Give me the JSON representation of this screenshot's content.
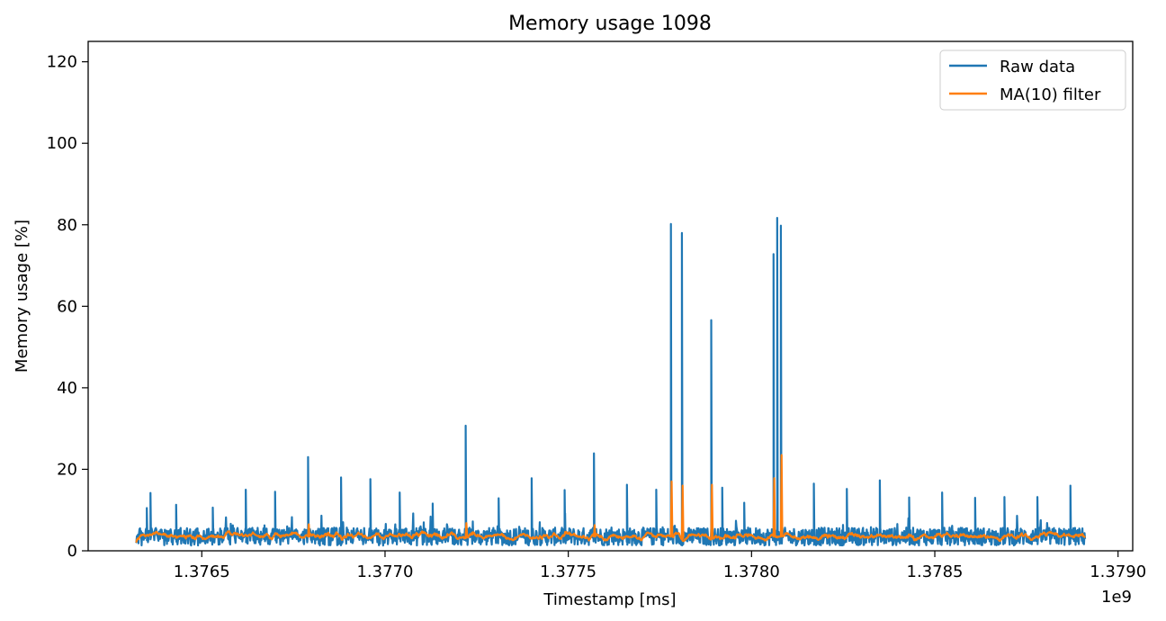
{
  "chart_data": {
    "type": "line",
    "title": "Memory usage 1098",
    "xlabel": "Timestamp [ms]",
    "ylabel": "Memory usage [%]",
    "x_offset_label": "1e9",
    "xlim": [
      1.37619,
      1.37904
    ],
    "ylim": [
      0,
      125
    ],
    "x_ticks": [
      1.3765,
      1.377,
      1.3775,
      1.378,
      1.3785,
      1.379
    ],
    "x_tick_labels": [
      "1.3765",
      "1.3770",
      "1.3775",
      "1.3780",
      "1.3785",
      "1.3790"
    ],
    "y_ticks": [
      0,
      20,
      40,
      60,
      80,
      100,
      120
    ],
    "y_tick_labels": [
      "0",
      "20",
      "40",
      "60",
      "80",
      "100",
      "120"
    ],
    "grid": false,
    "legend_position": "top-right",
    "x_range": [
      1.37632,
      1.37891
    ],
    "baseline_band": {
      "min": 1.5,
      "max": 5.5,
      "center": 3.5
    },
    "series": [
      {
        "name": "Raw data",
        "color": "#1f77b4",
        "spikes": [
          {
            "x": 1.37635,
            "y": 10.5
          },
          {
            "x": 1.37636,
            "y": 14.2
          },
          {
            "x": 1.37643,
            "y": 11.3
          },
          {
            "x": 1.37653,
            "y": 10.6
          },
          {
            "x": 1.37662,
            "y": 15.0
          },
          {
            "x": 1.3767,
            "y": 14.5
          },
          {
            "x": 1.37679,
            "y": 23.0
          },
          {
            "x": 1.37688,
            "y": 18.0
          },
          {
            "x": 1.37696,
            "y": 17.6
          },
          {
            "x": 1.37704,
            "y": 14.3
          },
          {
            "x": 1.37713,
            "y": 11.6
          },
          {
            "x": 1.37722,
            "y": 30.7
          },
          {
            "x": 1.37731,
            "y": 12.9
          },
          {
            "x": 1.3774,
            "y": 17.8
          },
          {
            "x": 1.37749,
            "y": 14.9
          },
          {
            "x": 1.37757,
            "y": 23.9
          },
          {
            "x": 1.37766,
            "y": 16.2
          },
          {
            "x": 1.37774,
            "y": 15.0
          },
          {
            "x": 1.37778,
            "y": 80.2
          },
          {
            "x": 1.37781,
            "y": 78.0
          },
          {
            "x": 1.37789,
            "y": 56.6
          },
          {
            "x": 1.37792,
            "y": 15.5
          },
          {
            "x": 1.37798,
            "y": 11.8
          },
          {
            "x": 1.37806,
            "y": 72.8
          },
          {
            "x": 1.37807,
            "y": 81.7
          },
          {
            "x": 1.37808,
            "y": 79.8
          },
          {
            "x": 1.37817,
            "y": 16.5
          },
          {
            "x": 1.37826,
            "y": 15.2
          },
          {
            "x": 1.37835,
            "y": 17.3
          },
          {
            "x": 1.37843,
            "y": 13.1
          },
          {
            "x": 1.37852,
            "y": 14.3
          },
          {
            "x": 1.37861,
            "y": 13.0
          },
          {
            "x": 1.37869,
            "y": 13.2
          },
          {
            "x": 1.37878,
            "y": 13.2
          },
          {
            "x": 1.37887,
            "y": 16.0
          }
        ]
      },
      {
        "name": "MA(10) filter",
        "color": "#ff7f0e",
        "spikes": [
          {
            "x": 1.37679,
            "y": 6.5
          },
          {
            "x": 1.37722,
            "y": 6.8
          },
          {
            "x": 1.37757,
            "y": 6.3
          },
          {
            "x": 1.37778,
            "y": 17.0
          },
          {
            "x": 1.37781,
            "y": 16.0
          },
          {
            "x": 1.37789,
            "y": 16.2
          },
          {
            "x": 1.37806,
            "y": 17.8
          },
          {
            "x": 1.37808,
            "y": 23.5
          }
        ]
      }
    ]
  }
}
